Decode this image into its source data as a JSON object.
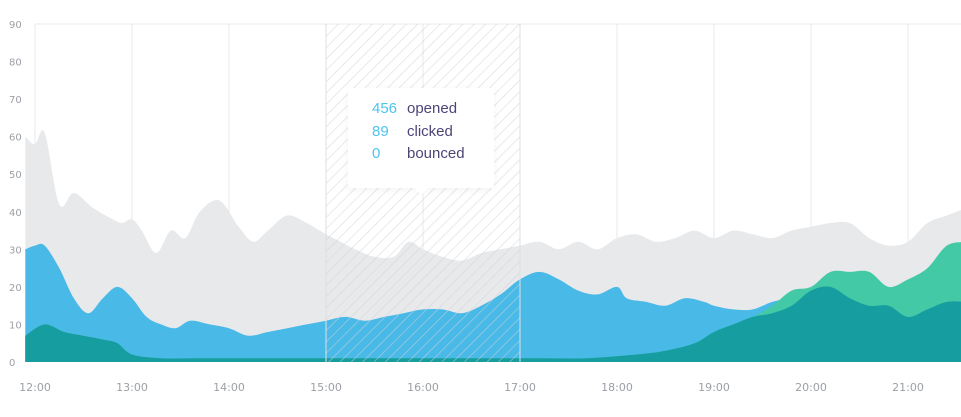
{
  "chart_data": {
    "type": "area",
    "title": "",
    "xlabel": "",
    "ylabel": "",
    "xlim": [
      11.9,
      21.6
    ],
    "ylim": [
      0,
      90
    ],
    "y_ticks": [
      0,
      10,
      20,
      30,
      40,
      50,
      60,
      70,
      80,
      90
    ],
    "x_ticks": [
      {
        "value": 12,
        "label": "12:00"
      },
      {
        "value": 13,
        "label": "13:00"
      },
      {
        "value": 14,
        "label": "14:00"
      },
      {
        "value": 15,
        "label": "15:00"
      },
      {
        "value": 16,
        "label": "16:00"
      },
      {
        "value": 17,
        "label": "17:00"
      },
      {
        "value": 18,
        "label": "18:00"
      },
      {
        "value": 19,
        "label": "19:00"
      },
      {
        "value": 20,
        "label": "20:00"
      },
      {
        "value": 21,
        "label": "21:00"
      }
    ],
    "grid": true,
    "highlight": {
      "from": 15,
      "to": 17
    },
    "tooltip": {
      "rows": [
        {
          "value": "456",
          "label": "opened"
        },
        {
          "value": "89",
          "label": "clicked"
        },
        {
          "value": "0",
          "label": "bounced"
        }
      ]
    },
    "series": [
      {
        "color": "#e8e9eb",
        "points": [
          [
            11.9,
            60
          ],
          [
            12.0,
            58
          ],
          [
            12.1,
            61
          ],
          [
            12.25,
            42
          ],
          [
            12.4,
            45
          ],
          [
            12.6,
            41
          ],
          [
            12.8,
            38
          ],
          [
            12.9,
            37
          ],
          [
            13.0,
            38
          ],
          [
            13.1,
            35
          ],
          [
            13.25,
            29
          ],
          [
            13.4,
            35
          ],
          [
            13.55,
            33
          ],
          [
            13.7,
            40
          ],
          [
            13.9,
            43
          ],
          [
            14.1,
            36
          ],
          [
            14.25,
            32
          ],
          [
            14.4,
            35
          ],
          [
            14.6,
            39
          ],
          [
            14.8,
            37
          ],
          [
            15.0,
            34
          ],
          [
            15.15,
            32
          ],
          [
            15.3,
            30
          ],
          [
            15.5,
            28
          ],
          [
            15.7,
            28
          ],
          [
            15.85,
            32
          ],
          [
            16.0,
            30
          ],
          [
            16.2,
            28
          ],
          [
            16.4,
            27
          ],
          [
            16.6,
            29
          ],
          [
            16.8,
            30
          ],
          [
            17.0,
            31
          ],
          [
            17.2,
            32
          ],
          [
            17.4,
            30
          ],
          [
            17.6,
            32
          ],
          [
            17.8,
            30
          ],
          [
            18.0,
            33
          ],
          [
            18.2,
            34
          ],
          [
            18.4,
            32
          ],
          [
            18.6,
            33
          ],
          [
            18.8,
            35
          ],
          [
            19.0,
            33
          ],
          [
            19.2,
            35
          ],
          [
            19.4,
            34
          ],
          [
            19.6,
            33
          ],
          [
            19.8,
            35
          ],
          [
            20.0,
            36
          ],
          [
            20.2,
            37
          ],
          [
            20.4,
            37
          ],
          [
            20.6,
            33
          ],
          [
            20.8,
            31
          ],
          [
            21.0,
            32
          ],
          [
            21.2,
            37
          ],
          [
            21.4,
            39
          ],
          [
            21.6,
            41
          ]
        ]
      },
      {
        "color": "#49b9e8",
        "points": [
          [
            11.9,
            30
          ],
          [
            12.0,
            31
          ],
          [
            12.1,
            31
          ],
          [
            12.25,
            25
          ],
          [
            12.4,
            17
          ],
          [
            12.55,
            13
          ],
          [
            12.7,
            17
          ],
          [
            12.85,
            20
          ],
          [
            13.0,
            17
          ],
          [
            13.15,
            12
          ],
          [
            13.3,
            10
          ],
          [
            13.45,
            9
          ],
          [
            13.6,
            11
          ],
          [
            13.8,
            10
          ],
          [
            14.0,
            9
          ],
          [
            14.2,
            7
          ],
          [
            14.4,
            8
          ],
          [
            14.6,
            9
          ],
          [
            14.8,
            10
          ],
          [
            15.0,
            11
          ],
          [
            15.2,
            12
          ],
          [
            15.4,
            11
          ],
          [
            15.6,
            12
          ],
          [
            15.8,
            13
          ],
          [
            16.0,
            14
          ],
          [
            16.2,
            14
          ],
          [
            16.4,
            13
          ],
          [
            16.6,
            15
          ],
          [
            16.8,
            18
          ],
          [
            17.0,
            22
          ],
          [
            17.2,
            24
          ],
          [
            17.4,
            22
          ],
          [
            17.6,
            19
          ],
          [
            17.8,
            18
          ],
          [
            18.0,
            20
          ],
          [
            18.1,
            17
          ],
          [
            18.3,
            16
          ],
          [
            18.5,
            15
          ],
          [
            18.7,
            17
          ],
          [
            18.9,
            16
          ],
          [
            19.0,
            15
          ],
          [
            19.2,
            14
          ],
          [
            19.4,
            14
          ],
          [
            19.6,
            16
          ],
          [
            19.8,
            17
          ],
          [
            20.0,
            17
          ],
          [
            20.2,
            17
          ],
          [
            20.4,
            17
          ],
          [
            20.6,
            16
          ],
          [
            20.8,
            14
          ],
          [
            21.0,
            13
          ],
          [
            21.2,
            14
          ],
          [
            21.4,
            15
          ],
          [
            21.6,
            16
          ]
        ]
      },
      {
        "color": "#44c9a6",
        "points": [
          [
            11.9,
            7
          ],
          [
            12.1,
            10
          ],
          [
            12.3,
            8
          ],
          [
            12.5,
            7
          ],
          [
            12.7,
            6
          ],
          [
            12.85,
            5
          ],
          [
            13.0,
            2
          ],
          [
            13.3,
            1
          ],
          [
            13.7,
            1
          ],
          [
            14.2,
            1
          ],
          [
            14.7,
            1
          ],
          [
            15.2,
            1
          ],
          [
            15.7,
            1
          ],
          [
            16.2,
            1
          ],
          [
            16.7,
            1
          ],
          [
            17.2,
            1
          ],
          [
            17.7,
            1
          ],
          [
            18.2,
            2
          ],
          [
            18.5,
            3
          ],
          [
            18.8,
            5
          ],
          [
            19.0,
            8
          ],
          [
            19.2,
            10
          ],
          [
            19.4,
            12
          ],
          [
            19.6,
            15
          ],
          [
            19.8,
            19
          ],
          [
            20.0,
            20
          ],
          [
            20.2,
            24
          ],
          [
            20.4,
            24
          ],
          [
            20.6,
            24
          ],
          [
            20.8,
            20
          ],
          [
            21.0,
            22
          ],
          [
            21.2,
            25
          ],
          [
            21.4,
            31
          ],
          [
            21.6,
            32
          ]
        ]
      },
      {
        "color": "#159da0",
        "points": [
          [
            11.9,
            7
          ],
          [
            12.1,
            10
          ],
          [
            12.3,
            8
          ],
          [
            12.5,
            7
          ],
          [
            12.7,
            6
          ],
          [
            12.85,
            5
          ],
          [
            13.0,
            2
          ],
          [
            13.3,
            1
          ],
          [
            13.7,
            1
          ],
          [
            14.2,
            1
          ],
          [
            14.7,
            1
          ],
          [
            15.2,
            1
          ],
          [
            15.7,
            1
          ],
          [
            16.2,
            1
          ],
          [
            16.7,
            1
          ],
          [
            17.2,
            1
          ],
          [
            17.7,
            1
          ],
          [
            18.2,
            2
          ],
          [
            18.5,
            3
          ],
          [
            18.8,
            5
          ],
          [
            19.0,
            8
          ],
          [
            19.2,
            10
          ],
          [
            19.4,
            12
          ],
          [
            19.6,
            13
          ],
          [
            19.8,
            15
          ],
          [
            20.0,
            19
          ],
          [
            20.2,
            20
          ],
          [
            20.4,
            17
          ],
          [
            20.6,
            15
          ],
          [
            20.8,
            15
          ],
          [
            21.0,
            12
          ],
          [
            21.2,
            14
          ],
          [
            21.4,
            16
          ],
          [
            21.6,
            16
          ]
        ]
      }
    ]
  }
}
